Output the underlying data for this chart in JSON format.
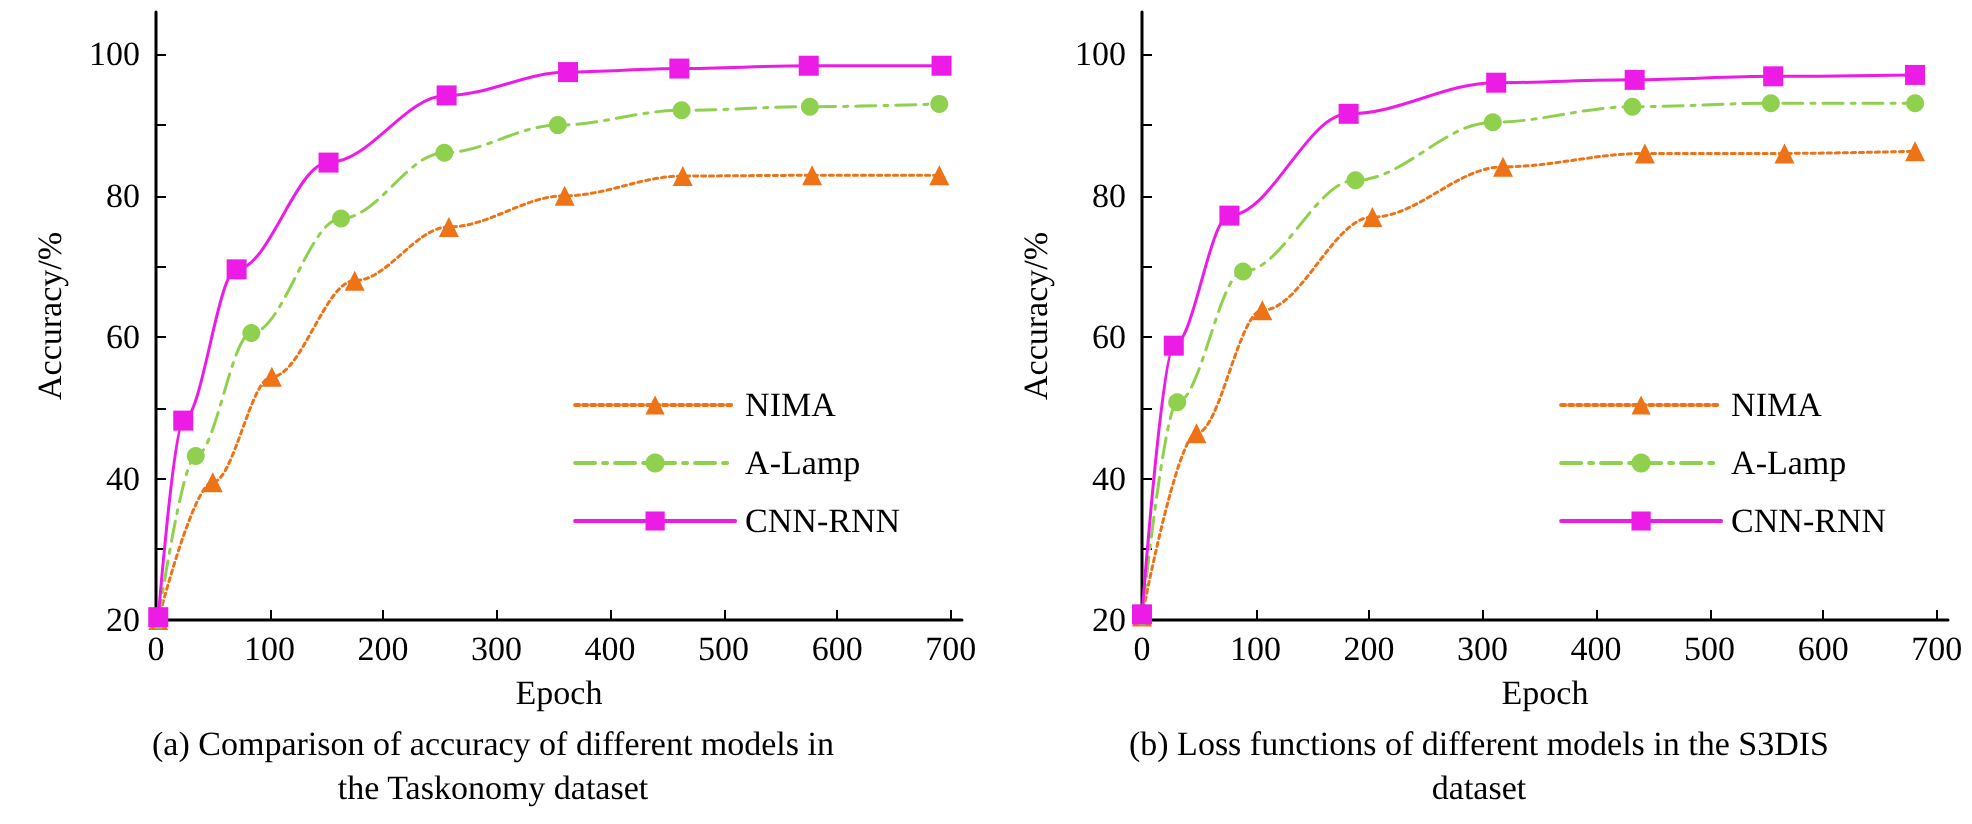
{
  "chart_data": [
    {
      "type": "line",
      "title": "(a) Comparison of accuracy of different models in the Taskonomy dataset",
      "xlabel": "Epoch",
      "ylabel": "Accuracy/%",
      "xlim": [
        0,
        710
      ],
      "xticks": [
        0,
        100,
        200,
        300,
        400,
        500,
        600,
        700
      ],
      "ylim": [
        20,
        106
      ],
      "yticks": [
        20,
        {
          "value": 30,
          "label": null
        },
        40,
        {
          "value": 50,
          "label": null
        },
        60,
        {
          "value": 70,
          "label": null
        },
        80,
        {
          "value": 90,
          "label": null
        },
        100
      ],
      "grid": false,
      "legend": "bottom right",
      "series": [
        {
          "name": "NIMA",
          "color": "#ee7316",
          "marker": "triangle",
          "line_style": "dotted",
          "x": [
            2,
            50,
            102,
            175,
            258,
            360,
            464,
            578,
            690
          ],
          "values": [
            20,
            39.5,
            54.4,
            68,
            75.6,
            80,
            82.8,
            82.9,
            82.9
          ]
        },
        {
          "name": "A-Lamp",
          "color": "#8fd14f",
          "marker": "circle",
          "line_style": "dashed",
          "x": [
            2,
            35,
            84,
            163,
            254,
            354,
            463,
            576,
            690
          ],
          "values": [
            20,
            43.2,
            60.6,
            76.8,
            86.1,
            90,
            92.1,
            92.6,
            93
          ]
        },
        {
          "name": "CNN-RNN",
          "color": "#ec1ce6",
          "marker": "square",
          "line_style": "solid",
          "x": [
            2,
            24,
            71,
            152,
            256,
            363,
            461,
            575,
            692
          ],
          "values": [
            20.4,
            48.2,
            69.6,
            84.7,
            94.2,
            97.5,
            98,
            98.4,
            98.4
          ]
        }
      ]
    },
    {
      "type": "line",
      "title": "(b) Loss functions of different models in the S3DIS dataset",
      "xlabel": "Epoch",
      "ylabel": "Accuracy/%",
      "xlim": [
        0,
        710
      ],
      "xticks": [
        0,
        100,
        200,
        300,
        400,
        500,
        600,
        700
      ],
      "ylim": [
        20,
        106
      ],
      "yticks": [
        20,
        {
          "value": 30,
          "label": null
        },
        40,
        {
          "value": 50,
          "label": null
        },
        60,
        {
          "value": 70,
          "label": null
        },
        80,
        {
          "value": 90,
          "label": null
        },
        100
      ],
      "grid": false,
      "legend": "bottom right",
      "series": [
        {
          "name": "NIMA",
          "color": "#ee7316",
          "marker": "triangle",
          "line_style": "dotted",
          "x": [
            0,
            48,
            106,
            203,
            318,
            443,
            566,
            681
          ],
          "values": [
            20.5,
            46.4,
            63.8,
            77,
            84.1,
            86,
            86,
            86.3
          ]
        },
        {
          "name": "A-Lamp",
          "color": "#8fd14f",
          "marker": "circle",
          "line_style": "dashed",
          "x": [
            0,
            31,
            89,
            188,
            309,
            432,
            554,
            681
          ],
          "values": [
            20.5,
            50.8,
            69.3,
            82.2,
            90.4,
            92.6,
            93.1,
            93.1
          ]
        },
        {
          "name": "CNN-RNN",
          "color": "#ec1ce6",
          "marker": "square",
          "line_style": "solid",
          "x": [
            0,
            28,
            77,
            182,
            312,
            434,
            556,
            681
          ],
          "values": [
            20.8,
            58.8,
            77.2,
            91.6,
            96,
            96.4,
            96.9,
            97.1
          ]
        }
      ]
    }
  ]
}
